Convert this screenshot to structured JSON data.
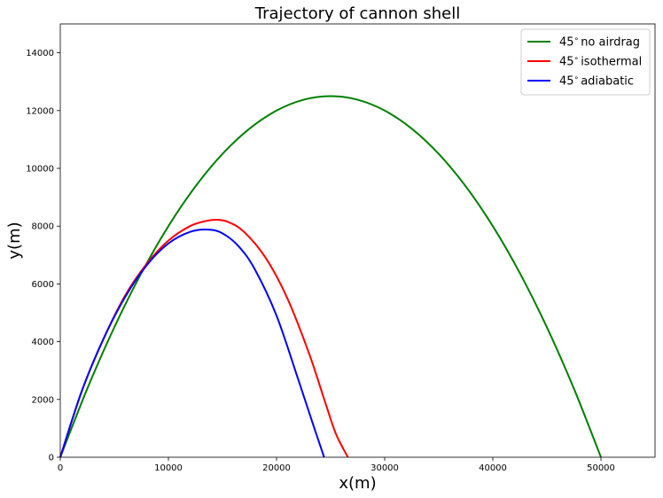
{
  "chart_data": {
    "type": "line",
    "title": "Trajectory of cannon shell",
    "xlabel": "x(m)",
    "ylabel": "y(m)",
    "xlim": [
      0,
      55000
    ],
    "ylim": [
      0,
      15000
    ],
    "xticks": [
      0,
      10000,
      20000,
      30000,
      40000,
      50000
    ],
    "yticks": [
      0,
      2000,
      4000,
      6000,
      8000,
      10000,
      12000,
      14000
    ],
    "grid": false,
    "legend_position": "top-right",
    "series": [
      {
        "name": "45$^\\circ$no airdrag",
        "label_parts": [
          "45",
          "∘",
          "no airdrag"
        ],
        "color": "#008000",
        "x": [
          0,
          2500,
          5000,
          7500,
          10000,
          12500,
          15000,
          17500,
          20000,
          22500,
          25000,
          27500,
          30000,
          32500,
          35000,
          37500,
          40000,
          42500,
          45000,
          47500,
          50000
        ],
        "y": [
          0,
          2375,
          4500,
          6375,
          8000,
          9375,
          10500,
          11375,
          12000,
          12375,
          12500,
          12375,
          12000,
          11375,
          10500,
          9375,
          8000,
          6375,
          4500,
          2375,
          0
        ]
      },
      {
        "name": "45$^\\circ$isothermal",
        "label_parts": [
          "45",
          "∘",
          "isothermal"
        ],
        "color": "#ff0000",
        "x": [
          0,
          2000,
          4000,
          6000,
          8000,
          10000,
          12000,
          13500,
          14500,
          15500,
          17000,
          19000,
          21000,
          23000,
          24500,
          25500,
          26600
        ],
        "y": [
          0,
          2300,
          4100,
          5600,
          6700,
          7500,
          8000,
          8180,
          8220,
          8150,
          7800,
          6900,
          5500,
          3600,
          1900,
          800,
          0
        ]
      },
      {
        "name": "45$^\\circ$adiabatic",
        "label_parts": [
          "45",
          "∘",
          "adiabatic"
        ],
        "color": "#0000ff",
        "x": [
          0,
          2000,
          4000,
          6000,
          8000,
          10000,
          12000,
          13700,
          15000,
          16500,
          18000,
          20000,
          22000,
          23500,
          24400
        ],
        "y": [
          0,
          2300,
          4100,
          5550,
          6650,
          7400,
          7800,
          7880,
          7750,
          7300,
          6500,
          4900,
          2700,
          1000,
          0
        ]
      }
    ]
  }
}
